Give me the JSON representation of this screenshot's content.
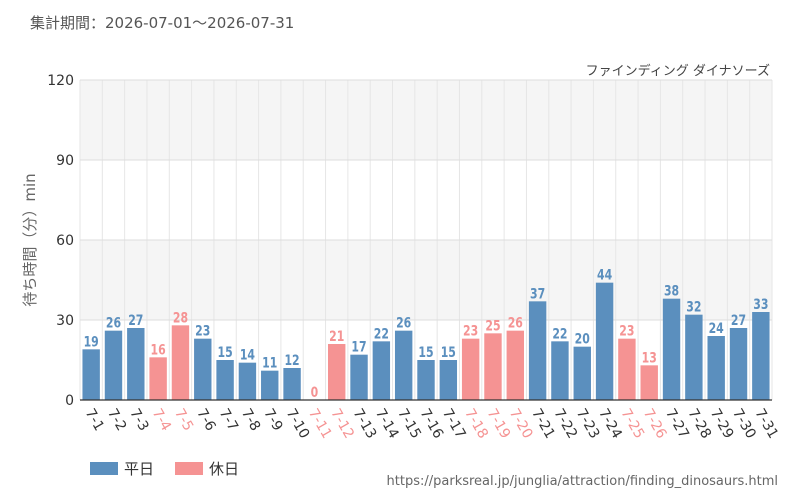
{
  "period_label": "集計期間：2026-07-01～2026-07-31",
  "source_url": "https://parksreal.jp/junglia/attraction/finding_dinosaurs.html",
  "legend": {
    "weekday": {
      "label": "平日",
      "color": "#5b8fbe"
    },
    "holiday": {
      "label": "休日",
      "color": "#f59393"
    }
  },
  "chart_data": {
    "type": "bar",
    "title": "ファインディング ダイナソーズ",
    "ylabel": "待ち時間（分）min",
    "xlabel": "",
    "ylim": [
      0,
      120
    ],
    "yticks": [
      0,
      30,
      60,
      90,
      120
    ],
    "grid": true,
    "legend_position": "bottom-left",
    "categories": [
      "7-1",
      "7-2",
      "7-3",
      "7-4",
      "7-5",
      "7-6",
      "7-7",
      "7-8",
      "7-9",
      "7-10",
      "7-11",
      "7-12",
      "7-13",
      "7-14",
      "7-15",
      "7-16",
      "7-17",
      "7-18",
      "7-19",
      "7-20",
      "7-21",
      "7-22",
      "7-23",
      "7-24",
      "7-25",
      "7-26",
      "7-27",
      "7-28",
      "7-29",
      "7-30",
      "7-31"
    ],
    "values": [
      19,
      26,
      27,
      16,
      28,
      23,
      15,
      14,
      11,
      12,
      0,
      21,
      17,
      22,
      26,
      15,
      15,
      23,
      25,
      26,
      37,
      22,
      20,
      44,
      23,
      13,
      38,
      32,
      24,
      27,
      33
    ],
    "day_type": [
      "weekday",
      "weekday",
      "weekday",
      "holiday",
      "holiday",
      "weekday",
      "weekday",
      "weekday",
      "weekday",
      "weekday",
      "holiday",
      "holiday",
      "weekday",
      "weekday",
      "weekday",
      "weekday",
      "weekday",
      "holiday",
      "holiday",
      "holiday",
      "weekday",
      "weekday",
      "weekday",
      "weekday",
      "holiday",
      "holiday",
      "weekday",
      "weekday",
      "weekday",
      "weekday",
      "weekday"
    ]
  }
}
